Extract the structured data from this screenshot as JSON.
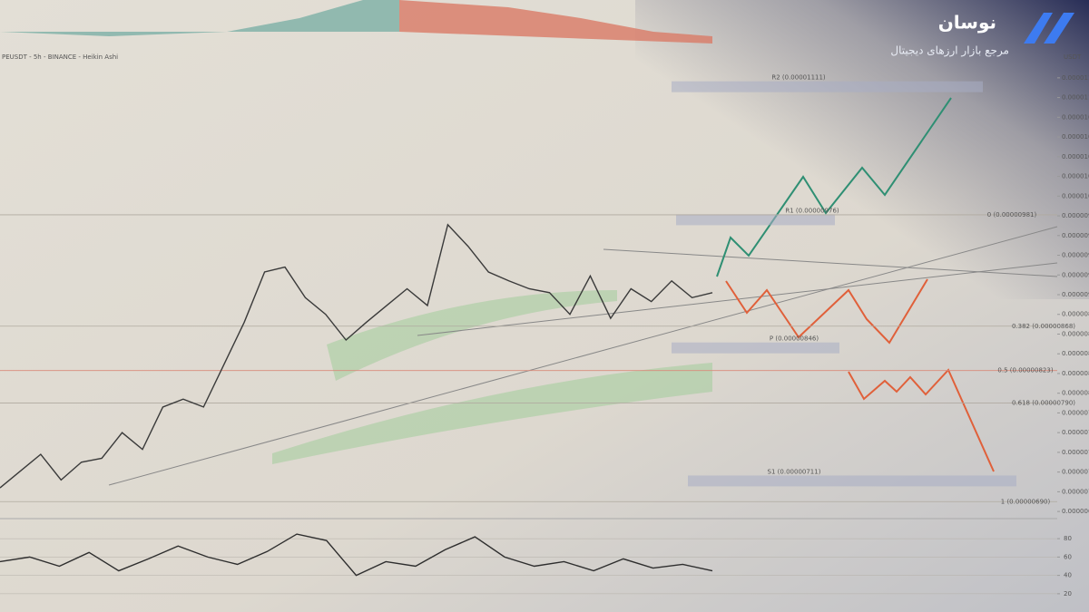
{
  "chart_data": [
    {
      "type": "line",
      "ticker": "PEUSDT - 5h - BINANCE - Heikin Ashi",
      "axis_unit": "USDT",
      "brand": "نوسان",
      "brand_tagline": "مرجع بازار ارزهای دیجیتال",
      "color": "#3a3a3a",
      "categories": [
        null,
        null,
        null,
        null,
        null,
        null,
        null,
        null,
        null,
        null,
        null,
        null,
        null,
        null,
        null,
        null,
        null,
        null,
        null,
        null,
        null,
        null,
        null,
        null,
        null,
        null,
        null,
        null,
        null,
        null,
        null,
        null,
        null,
        null,
        null,
        null
      ],
      "values": [
        7.04e-06,
        7.21e-06,
        7.38e-06,
        7.12e-06,
        7.3e-06,
        7.34e-06,
        7.6e-06,
        7.43e-06,
        7.86e-06,
        7.94e-06,
        7.86e-06,
        8.29e-06,
        8.72e-06,
        9.23e-06,
        9.28e-06,
        8.97e-06,
        8.8e-06,
        8.54e-06,
        8.72e-06,
        8.89e-06,
        9.06e-06,
        8.89e-06,
        9.71e-06,
        9.49e-06,
        9.23e-06,
        9.14e-06,
        9.06e-06,
        9.02e-06,
        8.8e-06,
        9.19e-06,
        8.76e-06,
        9.06e-06,
        8.93e-06,
        9.14e-06,
        8.97e-06,
        9.02e-06
      ],
      "ylim": [
        6.7e-06,
        1.13e-05
      ],
      "yticks": [
        {
          "value": 6.8e-06,
          "label": "0.00000680"
        },
        {
          "value": 7e-06,
          "label": "0.00000700"
        },
        {
          "value": 7.2e-06,
          "label": "0.00000720"
        },
        {
          "value": 7.4e-06,
          "label": "0.00000740"
        },
        {
          "value": 7.6e-06,
          "label": "0.00000760"
        },
        {
          "value": 7.8e-06,
          "label": "0.00000780"
        },
        {
          "value": 8e-06,
          "label": "0.00000800"
        },
        {
          "value": 8.2e-06,
          "label": "0.00000820"
        },
        {
          "value": 8.4e-06,
          "label": "0.00000840"
        },
        {
          "value": 8.6e-06,
          "label": "0.00000860"
        },
        {
          "value": 8.8e-06,
          "label": "0.00000880"
        },
        {
          "value": 9e-06,
          "label": "0.00000900"
        },
        {
          "value": 9.2e-06,
          "label": "0.00000920"
        },
        {
          "value": 9.4e-06,
          "label": "0.00000940"
        },
        {
          "value": 9.6e-06,
          "label": "0.00000960"
        },
        {
          "value": 9.8e-06,
          "label": "0.00000980"
        },
        {
          "value": 1e-05,
          "label": "0.00001000"
        },
        {
          "value": 1.02e-05,
          "label": "0.00001020"
        },
        {
          "value": 1.04e-05,
          "label": "0.00001040"
        },
        {
          "value": 1.06e-05,
          "label": "0.00001060"
        },
        {
          "value": 1.08e-05,
          "label": "0.00001080"
        },
        {
          "value": 1.1e-05,
          "label": "0.00001100"
        },
        {
          "value": 1.12e-05,
          "label": "0.00001120"
        }
      ],
      "levels": [
        {
          "label": "R2 (0.00001111)",
          "value": 1.111e-05
        },
        {
          "label": "R1 (0.00000976)",
          "value": 9.76e-06
        },
        {
          "label": "0 (0.00000981)",
          "value": 9.81e-06
        },
        {
          "label": "P (0.00000846)",
          "value": 8.46e-06
        },
        {
          "label": "0.382 (0.00000868)",
          "value": 8.68e-06
        },
        {
          "label": "0.5 (0.00000823)",
          "value": 8.23e-06
        },
        {
          "label": "0.618 (0.00000790)",
          "value": 7.9e-06
        },
        {
          "label": "S1 (0.00000711)",
          "value": 7.11e-06
        },
        {
          "label": "1 (0.00000690)",
          "value": 6.9e-06
        }
      ]
    },
    {
      "type": "line",
      "color": "#2e2e2e",
      "categories": [
        null,
        null,
        null,
        null,
        null,
        null,
        null,
        null,
        null,
        null,
        null,
        null,
        null,
        null,
        null,
        null,
        null,
        null,
        null,
        null,
        null,
        null,
        null,
        null,
        null
      ],
      "values": [
        55,
        60,
        50,
        65,
        45,
        58,
        72,
        60,
        52,
        66,
        85,
        78,
        40,
        55,
        50,
        68,
        82,
        60,
        50,
        55,
        45,
        58,
        48,
        52,
        45
      ],
      "ylim": [
        10,
        90
      ],
      "yticks": [
        20,
        40,
        60,
        80
      ]
    }
  ]
}
